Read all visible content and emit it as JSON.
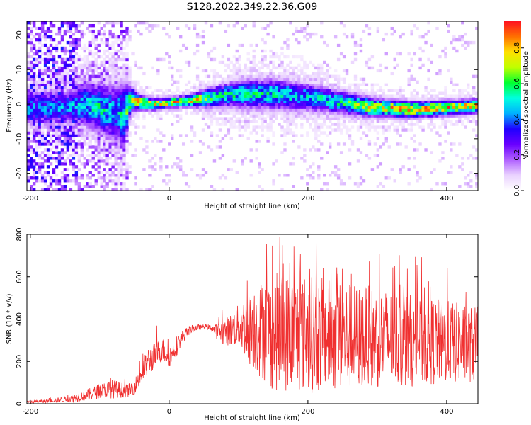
{
  "title": "S128.2022.349.22.36.G09",
  "colors": {
    "snr_line": "#f03030",
    "axis": "#000000",
    "background": "#ffffff",
    "colormap": [
      "#ffffff",
      "#ead2ff",
      "#b060ff",
      "#6a00ff",
      "#1f00ff",
      "#00b0ff",
      "#00ffe0",
      "#00ff30",
      "#c0ff00",
      "#ffe000",
      "#ff7000",
      "#ff1020"
    ]
  },
  "chart_data": [
    {
      "type": "heatmap",
      "xlabel": "Height of straight line (km)",
      "ylabel": "Frequency (Hz)",
      "xlim": [
        -205,
        445
      ],
      "ylim": [
        -25,
        24
      ],
      "xticks": [
        -200,
        0,
        200,
        400
      ],
      "yticks": [
        -20,
        -10,
        0,
        10,
        20
      ],
      "colorbar": {
        "label": "Normalized spectral amplitude",
        "range": [
          0.0,
          0.95
        ],
        "ticks": [
          0.0,
          0.2,
          0.4,
          0.6,
          0.8
        ]
      },
      "ridge": {
        "x": [
          -150,
          -120,
          -100,
          -80,
          -65,
          -55,
          -40,
          -20,
          0,
          30,
          60,
          100,
          150,
          200,
          250,
          300,
          350,
          400,
          445
        ],
        "frequency": [
          -1.0,
          0.0,
          -1.0,
          -2.5,
          -3.0,
          1.5,
          0.5,
          0.0,
          0.5,
          1.0,
          2.0,
          3.0,
          3.0,
          2.0,
          0.5,
          -1.0,
          -1.5,
          -1.0,
          -0.5
        ],
        "halfwidth": [
          3.0,
          4.0,
          4.5,
          5.0,
          6.0,
          2.0,
          1.2,
          1.0,
          0.9,
          1.0,
          1.8,
          2.5,
          2.8,
          2.5,
          2.0,
          1.6,
          1.4,
          1.3,
          1.2
        ],
        "peak_amplitude": [
          0.45,
          0.5,
          0.55,
          0.5,
          0.55,
          0.75,
          0.9,
          0.85,
          0.85,
          0.9,
          0.6,
          0.55,
          0.55,
          0.5,
          0.6,
          0.8,
          0.85,
          0.85,
          0.85
        ]
      }
    },
    {
      "type": "line",
      "xlabel": "Height of straight line (km)",
      "ylabel": "SNR (10 * v/v)",
      "xlim": [
        -205,
        445
      ],
      "ylim": [
        0,
        800
      ],
      "xticks": [
        -200,
        0,
        200,
        400
      ],
      "yticks": [
        0,
        200,
        400,
        600,
        800
      ],
      "series": [
        {
          "x": [
            -205,
            -180,
            -160,
            -140,
            -120,
            -100,
            -80,
            -60,
            -50,
            -40,
            -30,
            -20,
            -10,
            0,
            10,
            20,
            30,
            40,
            50,
            60,
            70,
            80,
            90,
            100,
            120,
            150,
            200,
            250,
            300,
            350,
            400,
            445
          ],
          "mean": [
            8,
            12,
            18,
            25,
            40,
            60,
            70,
            60,
            80,
            140,
            200,
            230,
            260,
            220,
            270,
            320,
            350,
            360,
            365,
            360,
            340,
            340,
            350,
            370,
            360,
            340,
            330,
            320,
            310,
            300,
            290,
            280
          ],
          "spread": [
            5,
            8,
            12,
            18,
            25,
            35,
            45,
            30,
            35,
            50,
            70,
            60,
            60,
            50,
            50,
            30,
            20,
            15,
            10,
            15,
            40,
            60,
            80,
            100,
            200,
            280,
            280,
            260,
            240,
            220,
            200,
            180
          ],
          "max": [
            15,
            25,
            35,
            60,
            80,
            100,
            150,
            110,
            140,
            230,
            290,
            360,
            420,
            300,
            320,
            350,
            370,
            375,
            380,
            380,
            420,
            480,
            520,
            560,
            700,
            800,
            790,
            800,
            710,
            700,
            680,
            560
          ]
        }
      ]
    }
  ]
}
